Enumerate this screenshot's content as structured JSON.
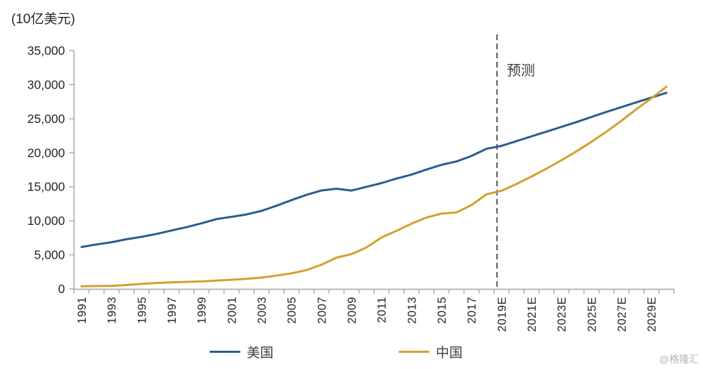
{
  "chart": {
    "unit_label": "(10亿美元)",
    "forecast_label": "预测",
    "watermark": "@格隆汇"
  },
  "chart_data": {
    "type": "line",
    "title": "",
    "ylabel": "(10亿美元)",
    "xlabel": "",
    "grid": false,
    "legend_position": "bottom",
    "ylim": [
      0,
      35000
    ],
    "y_ticks": [
      0,
      5000,
      10000,
      15000,
      20000,
      25000,
      30000,
      35000
    ],
    "x": [
      1991,
      1992,
      1993,
      1994,
      1995,
      1996,
      1997,
      1998,
      1999,
      2000,
      2001,
      2002,
      2003,
      2004,
      2005,
      2006,
      2007,
      2008,
      2009,
      2010,
      2011,
      2012,
      2013,
      2014,
      2015,
      2016,
      2017,
      2018,
      2019,
      2020,
      2021,
      2022,
      2023,
      2024,
      2025,
      2026,
      2027,
      2028,
      2029,
      2030
    ],
    "x_tick_labels": [
      "1991",
      "1993",
      "1995",
      "1997",
      "1999",
      "2001",
      "2003",
      "2005",
      "2007",
      "2009",
      "2011",
      "2013",
      "2015",
      "2017",
      "2019E",
      "2021E",
      "2023E",
      "2025E",
      "2027E",
      "2029E"
    ],
    "forecast_divider_x": 2018.7,
    "forecast_label": "预测",
    "series": [
      {
        "name": "美国",
        "color": "#2c5d8c",
        "values": [
          6158,
          6520,
          6859,
          7287,
          7640,
          8073,
          8578,
          9063,
          9631,
          10252,
          10582,
          10936,
          11458,
          12214,
          13037,
          13815,
          14452,
          14713,
          14449,
          14992,
          15543,
          16197,
          16785,
          17527,
          18225,
          18715,
          19519,
          20580,
          21000,
          21700,
          22400,
          23100,
          23800,
          24500,
          25250,
          26000,
          26700,
          27400,
          28100,
          28800
        ]
      },
      {
        "name": "中国",
        "color": "#d3a02f",
        "values": [
          383,
          427,
          445,
          564,
          734,
          864,
          962,
          1029,
          1094,
          1211,
          1339,
          1471,
          1660,
          1955,
          2286,
          2752,
          3550,
          4594,
          5102,
          6087,
          7552,
          8532,
          9570,
          10476,
          11062,
          11233,
          12310,
          13895,
          14400,
          15400,
          16500,
          17650,
          18900,
          20200,
          21600,
          23100,
          24700,
          26400,
          28000,
          29700
        ]
      }
    ]
  }
}
